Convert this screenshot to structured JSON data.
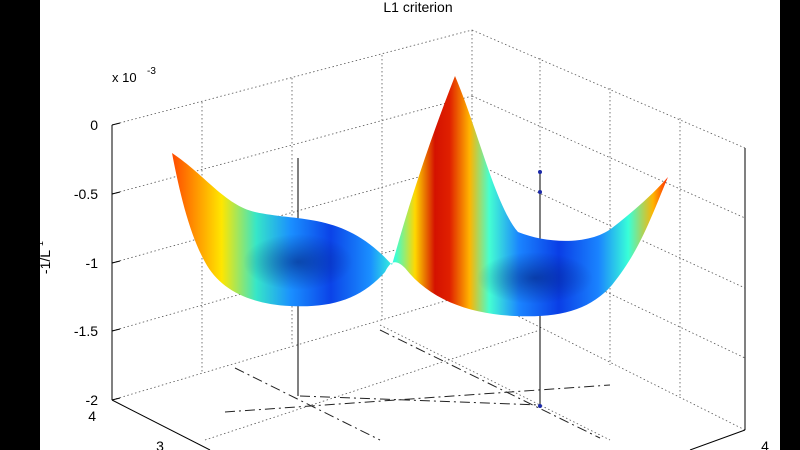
{
  "chart_data": {
    "type": "surface3d",
    "title": "L1 criterion",
    "zlabel": "-1/L",
    "zlabel_superscript": "1",
    "z_multiplier_base": "x 10",
    "z_multiplier_exp": "-3",
    "z_ticks": [
      "0",
      "-0.5",
      "-1",
      "-1.5",
      "-2"
    ],
    "y_ticks_visible": [
      "4",
      "3"
    ],
    "x_ticks_visible": [
      "4"
    ],
    "zlim": [
      -2,
      0
    ],
    "colormap": "jet",
    "grid": true,
    "minima": [
      {
        "x": 1,
        "y": 2.5,
        "z": -1.05
      },
      {
        "x": 3,
        "y": 2.5,
        "z": -1.15
      }
    ],
    "ridge_max_z": -0.25
  },
  "colors": {
    "background": "#ffffff",
    "frame": "#000000",
    "grid": "#555555"
  }
}
